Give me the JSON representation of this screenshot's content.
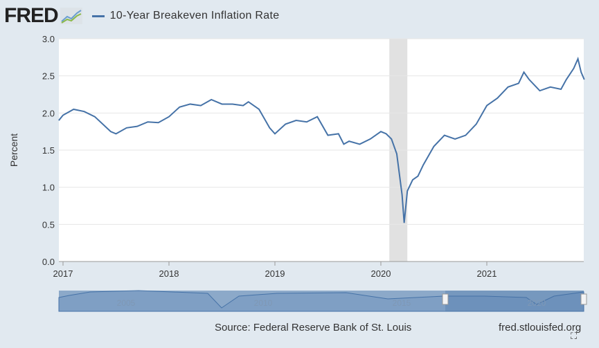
{
  "header": {
    "logo": "FRED",
    "legend": "10-Year Breakeven Inflation Rate"
  },
  "footer": {
    "source": "Source: Federal Reserve Bank of St. Louis",
    "url": "fred.stlouisfed.org"
  },
  "colors": {
    "line": "#4572a7",
    "recession": "#e1e1e1"
  },
  "chart_data": {
    "type": "line",
    "title": "10-Year Breakeven Inflation Rate",
    "ylabel": "Percent",
    "xlabel": "",
    "ylim": [
      0,
      3.0
    ],
    "xlim": [
      2016.96,
      2021.92
    ],
    "yticks": [
      "0.0",
      "0.5",
      "1.0",
      "1.5",
      "2.0",
      "2.5",
      "3.0"
    ],
    "xticks": [
      "2017",
      "2018",
      "2019",
      "2020",
      "2021"
    ],
    "recessions": [
      [
        2020.08,
        2020.25
      ]
    ],
    "navigator_labels": [
      "2005",
      "2010",
      "2015",
      "2020"
    ],
    "series": [
      {
        "name": "10-Year Breakeven Inflation Rate",
        "x": [
          2016.96,
          2017.0,
          2017.1,
          2017.2,
          2017.3,
          2017.45,
          2017.5,
          2017.6,
          2017.7,
          2017.8,
          2017.9,
          2018.0,
          2018.1,
          2018.2,
          2018.3,
          2018.4,
          2018.5,
          2018.6,
          2018.7,
          2018.75,
          2018.85,
          2018.95,
          2019.0,
          2019.1,
          2019.2,
          2019.3,
          2019.4,
          2019.5,
          2019.6,
          2019.65,
          2019.7,
          2019.8,
          2019.9,
          2020.0,
          2020.05,
          2020.1,
          2020.15,
          2020.2,
          2020.22,
          2020.25,
          2020.3,
          2020.35,
          2020.4,
          2020.5,
          2020.6,
          2020.7,
          2020.8,
          2020.9,
          2021.0,
          2021.1,
          2021.2,
          2021.3,
          2021.35,
          2021.4,
          2021.5,
          2021.6,
          2021.7,
          2021.75,
          2021.82,
          2021.86,
          2021.89,
          2021.92
        ],
        "y": [
          1.9,
          1.97,
          2.05,
          2.02,
          1.95,
          1.75,
          1.72,
          1.8,
          1.82,
          1.88,
          1.87,
          1.95,
          2.08,
          2.12,
          2.1,
          2.18,
          2.12,
          2.12,
          2.1,
          2.15,
          2.05,
          1.8,
          1.72,
          1.85,
          1.9,
          1.88,
          1.95,
          1.7,
          1.72,
          1.58,
          1.62,
          1.58,
          1.65,
          1.75,
          1.72,
          1.65,
          1.45,
          0.9,
          0.52,
          0.95,
          1.1,
          1.15,
          1.3,
          1.55,
          1.7,
          1.65,
          1.7,
          1.85,
          2.1,
          2.2,
          2.35,
          2.4,
          2.55,
          2.45,
          2.3,
          2.35,
          2.32,
          2.45,
          2.6,
          2.73,
          2.55,
          2.45
        ]
      }
    ]
  }
}
